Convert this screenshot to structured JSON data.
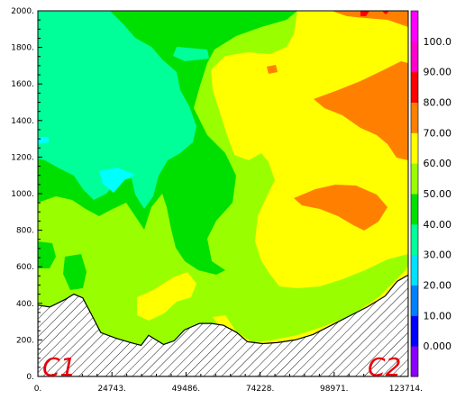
{
  "chart_data": {
    "type": "heatmap",
    "x_ticks": [
      "0.",
      "24743.",
      "49486.",
      "74228.",
      "98971.",
      "123714."
    ],
    "x_values": [
      0,
      24743,
      49486,
      74228,
      98971,
      123714
    ],
    "y_ticks": [
      "0.",
      "200.",
      "400.",
      "600.",
      "800.",
      "1000.",
      "1200.",
      "1400.",
      "1600.",
      "1800.",
      "2000."
    ],
    "y_values": [
      0,
      200,
      400,
      600,
      800,
      1000,
      1200,
      1400,
      1600,
      1800,
      2000
    ],
    "xlim": [
      0,
      123714
    ],
    "ylim": [
      0,
      2000
    ],
    "colorbar": {
      "labels": [
        "0.000",
        "10.00",
        "20.00",
        "30.00",
        "40.00",
        "50.00",
        "60.00",
        "70.00",
        "80.00",
        "90.00",
        "100.0"
      ],
      "colors": [
        "#8a00ff",
        "#0000ff",
        "#0080ff",
        "#00e0ff",
        "#00ff99",
        "#00e000",
        "#99ff00",
        "#ffff00",
        "#ff8000",
        "#ff0000",
        "#ff00cc",
        "#ff00ff"
      ]
    },
    "terrain_profile": [
      [
        0,
        390
      ],
      [
        4000,
        380
      ],
      [
        9000,
        420
      ],
      [
        12000,
        450
      ],
      [
        15000,
        430
      ],
      [
        18500,
        320
      ],
      [
        21000,
        240
      ],
      [
        26000,
        210
      ],
      [
        31000,
        185
      ],
      [
        34500,
        170
      ],
      [
        37000,
        225
      ],
      [
        39500,
        200
      ],
      [
        42000,
        175
      ],
      [
        45500,
        195
      ],
      [
        49000,
        255
      ],
      [
        54000,
        290
      ],
      [
        58000,
        290
      ],
      [
        62000,
        280
      ],
      [
        66500,
        240
      ],
      [
        70000,
        190
      ],
      [
        75000,
        180
      ],
      [
        80000,
        185
      ],
      [
        86000,
        200
      ],
      [
        92000,
        230
      ],
      [
        98000,
        280
      ],
      [
        104000,
        330
      ],
      [
        110000,
        380
      ],
      [
        116000,
        440
      ],
      [
        120000,
        520
      ],
      [
        123714,
        555
      ]
    ],
    "labels": {
      "left": "C1",
      "right": "C2"
    }
  }
}
